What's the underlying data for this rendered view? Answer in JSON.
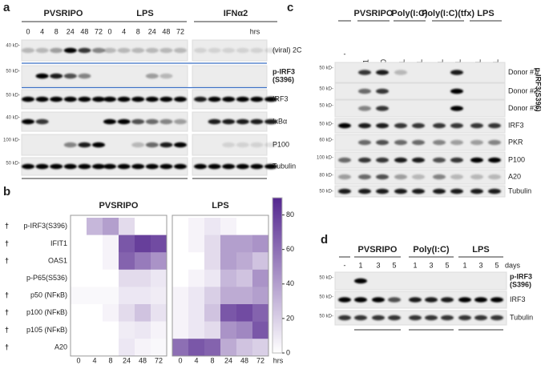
{
  "panels": [
    {
      "label": "a",
      "groups": [
        {
          "name": "PVSRIPO",
          "color": "#1f4e9c"
        },
        {
          "name": "LPS",
          "color": "#8b1a1a"
        },
        {
          "name": "IFNα2",
          "color": "#222222"
        }
      ],
      "timepoints": [
        "0",
        "4",
        "8",
        "24",
        "48",
        "72"
      ],
      "time_unit": "hrs",
      "blots": [
        {
          "marker": "40 kD-",
          "label": [
            "(viral) 2C"
          ]
        },
        {
          "marker": "50 kD-",
          "label": [
            "p-IRF3",
            "(S396)"
          ],
          "bold": true
        },
        {
          "marker": "50 kD-",
          "label": [
            "IRF3"
          ]
        },
        {
          "marker": "40 kD-",
          "label": [
            "IκBα"
          ]
        },
        {
          "marker": "100 kD-",
          "label": [
            "P100"
          ]
        },
        {
          "marker": "50 kD-",
          "label": [
            "Tubulin"
          ]
        }
      ]
    },
    {
      "label": "b",
      "type": "heatmap",
      "columns": [
        "0",
        "4",
        "8",
        "24",
        "48",
        "72"
      ],
      "x_unit": "hrs",
      "rows": [
        {
          "name": "p-IRF3(S396)",
          "dagger": "†",
          "dagger_color": "#1f4e9c"
        },
        {
          "name": "IFIT1",
          "dagger": "†",
          "dagger_color": "#1f4e9c"
        },
        {
          "name": "OAS1",
          "dagger": "†",
          "dagger_color": "#1f4e9c"
        },
        {
          "name": "p-P65(S536)"
        },
        {
          "name": "p50 (NFκB)",
          "dagger": "†",
          "dagger_color": "#c00000"
        },
        {
          "name": "p100 (NFκB)",
          "dagger": "†",
          "dagger_color": "#c00000"
        },
        {
          "name": "p105 (NFκB)",
          "dagger": "†",
          "dagger_color": "#c00000"
        },
        {
          "name": "A20",
          "dagger": "†",
          "dagger_color": "#c00000"
        }
      ],
      "groups": [
        {
          "name": "PVSRIPO",
          "color": "#1f4e9c",
          "values": [
            [
              0,
              30,
              40,
              15,
              0,
              0
            ],
            [
              0,
              0,
              5,
              70,
              80,
              75
            ],
            [
              0,
              0,
              5,
              65,
              55,
              45
            ],
            [
              0,
              0,
              0,
              15,
              15,
              10
            ],
            [
              3,
              3,
              3,
              10,
              10,
              8
            ],
            [
              0,
              0,
              5,
              15,
              25,
              12
            ],
            [
              0,
              0,
              0,
              8,
              10,
              5
            ],
            [
              0,
              0,
              0,
              10,
              5,
              3
            ]
          ]
        },
        {
          "name": "LPS",
          "color": "#8b1a1a",
          "values": [
            [
              0,
              5,
              10,
              5,
              0,
              0
            ],
            [
              0,
              5,
              15,
              40,
              40,
              45
            ],
            [
              0,
              0,
              15,
              40,
              35,
              25
            ],
            [
              0,
              5,
              10,
              30,
              25,
              45
            ],
            [
              5,
              10,
              20,
              35,
              35,
              40
            ],
            [
              5,
              10,
              25,
              70,
              75,
              65
            ],
            [
              5,
              10,
              15,
              45,
              50,
              70
            ],
            [
              60,
              70,
              65,
              35,
              25,
              20
            ]
          ]
        }
      ],
      "color_low": "#ffffff",
      "color_high": "#54278f",
      "colorbar": {
        "lim": [
          0,
          90
        ],
        "ticks": [
          0,
          20,
          40,
          60,
          80
        ]
      }
    },
    {
      "label": "c",
      "control_lane": "-",
      "group_label": "p-IRF3(S396)",
      "groups": [
        {
          "name": "PVSRIPO",
          "lanes": [
            "MOI 1",
            "MOI 10"
          ]
        },
        {
          "name": "Poly(I:C)",
          "lanes": [
            "1 µg/mL",
            "10 µg/mL"
          ]
        },
        {
          "name": "Poly(I:C)(tfx)",
          "lanes": [
            "0.5 µg/mL",
            "5 µg/mL"
          ]
        },
        {
          "name": "LPS",
          "lanes": [
            "0.1 µg/mL",
            "1 µg/mL"
          ]
        }
      ],
      "blots": [
        {
          "marker": "50 kD-",
          "label": [
            "Donor #1"
          ]
        },
        {
          "marker": "50 kD-",
          "label": [
            "Donor #2"
          ]
        },
        {
          "marker": "50 kD-",
          "label": [
            "Donor #3"
          ]
        },
        {
          "marker": "50 kD-",
          "label": [
            "IRF3"
          ]
        },
        {
          "marker": "60 kD-",
          "label": [
            "PKR"
          ]
        },
        {
          "marker": "100 kD-",
          "label": [
            "P100"
          ]
        },
        {
          "marker": "80 kD-",
          "label": [
            "A20"
          ]
        },
        {
          "marker": "50 kD-",
          "label": [
            "Tubulin"
          ]
        }
      ]
    },
    {
      "label": "d",
      "control_lane": "-",
      "time_unit": "days",
      "groups": [
        {
          "name": "PVSRIPO",
          "lanes": [
            "1",
            "3",
            "5"
          ]
        },
        {
          "name": "Poly(I:C)",
          "lanes": [
            "1",
            "3",
            "5"
          ]
        },
        {
          "name": "LPS",
          "lanes": [
            "1",
            "3",
            "5"
          ]
        }
      ],
      "blots": [
        {
          "marker": "50 kD-",
          "label": [
            "p-IRF3",
            "(S396)"
          ],
          "bold": true
        },
        {
          "marker": "50 kD-",
          "label": [
            "IRF3"
          ]
        },
        {
          "marker": "50 kD-",
          "label": [
            "Tubulin"
          ]
        }
      ]
    }
  ]
}
